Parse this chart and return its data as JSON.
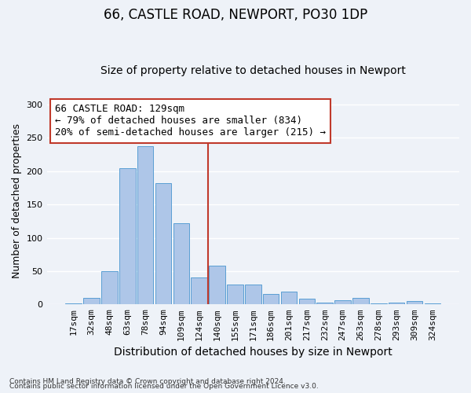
{
  "title1": "66, CASTLE ROAD, NEWPORT, PO30 1DP",
  "title2": "Size of property relative to detached houses in Newport",
  "xlabel": "Distribution of detached houses by size in Newport",
  "ylabel": "Number of detached properties",
  "footnote1": "Contains HM Land Registry data © Crown copyright and database right 2024.",
  "footnote2": "Contains public sector information licensed under the Open Government Licence v3.0.",
  "bar_labels": [
    "17sqm",
    "32sqm",
    "48sqm",
    "63sqm",
    "78sqm",
    "94sqm",
    "109sqm",
    "124sqm",
    "140sqm",
    "155sqm",
    "171sqm",
    "186sqm",
    "201sqm",
    "217sqm",
    "232sqm",
    "247sqm",
    "263sqm",
    "278sqm",
    "293sqm",
    "309sqm",
    "324sqm"
  ],
  "bar_values": [
    1,
    10,
    50,
    205,
    238,
    182,
    122,
    40,
    58,
    30,
    30,
    16,
    19,
    9,
    3,
    6,
    10,
    1,
    3,
    5,
    1
  ],
  "bar_color": "#aec6e8",
  "bar_edge_color": "#5a9fd4",
  "vline_index": 7.5,
  "vline_color": "#c0392b",
  "annotation_line1": "66 CASTLE ROAD: 129sqm",
  "annotation_line2": "← 79% of detached houses are smaller (834)",
  "annotation_line3": "20% of semi-detached houses are larger (215) →",
  "annotation_box_color": "#c0392b",
  "ylim": [
    0,
    310
  ],
  "yticks": [
    0,
    50,
    100,
    150,
    200,
    250,
    300
  ],
  "bg_color": "#eef2f8",
  "plot_bg_color": "#eef2f8",
  "grid_color": "#ffffff",
  "title1_fontsize": 12,
  "title2_fontsize": 10,
  "xlabel_fontsize": 10,
  "ylabel_fontsize": 9,
  "tick_fontsize": 8,
  "annot_fontsize": 9
}
